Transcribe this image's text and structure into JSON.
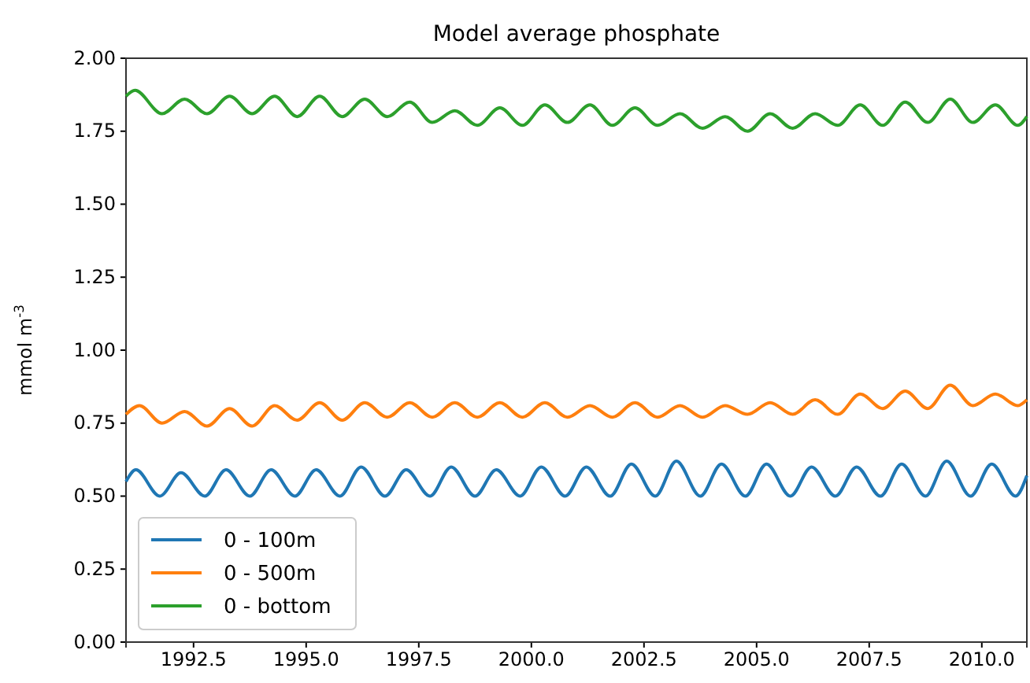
{
  "chart_data": {
    "type": "line",
    "title": "Model average phosphate",
    "ylabel": "mmol m$^{-3}$",
    "xlim": [
      1991,
      2011
    ],
    "ylim": [
      0,
      2
    ],
    "xticks": [
      {
        "value": 1992.5,
        "label": "1992.5"
      },
      {
        "value": 1995,
        "label": "1995.0"
      },
      {
        "value": 1997.5,
        "label": "1997.5"
      },
      {
        "value": 2000,
        "label": "2000.0"
      },
      {
        "value": 2002.5,
        "label": "2002.5"
      },
      {
        "value": 2005,
        "label": "2005.0"
      },
      {
        "value": 2007.5,
        "label": "2007.5"
      },
      {
        "value": 2010,
        "label": "2010.0"
      }
    ],
    "yticks": [
      {
        "value": 0,
        "label": "0.00"
      },
      {
        "value": 0.25,
        "label": "0.25"
      },
      {
        "value": 0.5,
        "label": "0.50"
      },
      {
        "value": 0.75,
        "label": "0.75"
      },
      {
        "value": 1,
        "label": "1.00"
      },
      {
        "value": 1.25,
        "label": "1.25"
      },
      {
        "value": 1.5,
        "label": "1.50"
      },
      {
        "value": 1.75,
        "label": "1.75"
      },
      {
        "value": 2,
        "label": "2.00"
      }
    ],
    "grid": false,
    "legend": "bottom left",
    "line_style": "solid",
    "marker": "none",
    "series": [
      {
        "name": "0 - 100m",
        "color": "#1f77b4",
        "x": [
          1991.0,
          1991.22,
          1991.75,
          1992.22,
          1992.75,
          1993.22,
          1993.75,
          1994.22,
          1994.75,
          1995.22,
          1995.75,
          1996.22,
          1996.75,
          1997.22,
          1997.75,
          1998.22,
          1998.75,
          1999.22,
          1999.75,
          2000.22,
          2000.75,
          2001.22,
          2001.75,
          2002.22,
          2002.75,
          2003.22,
          2003.75,
          2004.22,
          2004.75,
          2005.22,
          2005.75,
          2006.22,
          2006.75,
          2007.22,
          2007.75,
          2008.22,
          2008.75,
          2009.22,
          2009.75,
          2010.22,
          2010.75,
          2011.0
        ],
        "values": [
          0.55,
          0.59,
          0.5,
          0.58,
          0.5,
          0.59,
          0.5,
          0.59,
          0.5,
          0.59,
          0.5,
          0.6,
          0.5,
          0.59,
          0.5,
          0.6,
          0.5,
          0.59,
          0.5,
          0.6,
          0.5,
          0.6,
          0.5,
          0.61,
          0.5,
          0.62,
          0.5,
          0.61,
          0.5,
          0.61,
          0.5,
          0.6,
          0.5,
          0.6,
          0.5,
          0.61,
          0.5,
          0.62,
          0.5,
          0.61,
          0.5,
          0.57
        ]
      },
      {
        "name": "0 - 500m",
        "color": "#ff7f0e",
        "x": [
          1991.0,
          1991.3,
          1991.8,
          1992.3,
          1992.8,
          1993.3,
          1993.8,
          1994.3,
          1994.8,
          1995.3,
          1995.8,
          1996.3,
          1996.8,
          1997.3,
          1997.8,
          1998.3,
          1998.8,
          1999.3,
          1999.8,
          2000.3,
          2000.8,
          2001.3,
          2001.8,
          2002.3,
          2002.8,
          2003.3,
          2003.8,
          2004.3,
          2004.8,
          2005.3,
          2005.8,
          2006.3,
          2006.8,
          2007.3,
          2007.8,
          2008.3,
          2008.8,
          2009.3,
          2009.8,
          2010.3,
          2010.8,
          2011.0
        ],
        "values": [
          0.78,
          0.81,
          0.75,
          0.79,
          0.74,
          0.8,
          0.74,
          0.81,
          0.76,
          0.82,
          0.76,
          0.82,
          0.77,
          0.82,
          0.77,
          0.82,
          0.77,
          0.82,
          0.77,
          0.82,
          0.77,
          0.81,
          0.77,
          0.82,
          0.77,
          0.81,
          0.77,
          0.81,
          0.78,
          0.82,
          0.78,
          0.83,
          0.78,
          0.85,
          0.8,
          0.86,
          0.8,
          0.88,
          0.81,
          0.85,
          0.81,
          0.83
        ]
      },
      {
        "name": "0 - bottom",
        "color": "#2ca02c",
        "x": [
          1991.0,
          1991.2,
          1991.8,
          1992.3,
          1992.8,
          1993.3,
          1993.8,
          1994.3,
          1994.8,
          1995.3,
          1995.8,
          1996.3,
          1996.8,
          1997.3,
          1997.8,
          1998.3,
          1998.8,
          1999.3,
          1999.8,
          2000.3,
          2000.8,
          2001.3,
          2001.8,
          2002.3,
          2002.8,
          2003.3,
          2003.8,
          2004.3,
          2004.8,
          2005.3,
          2005.8,
          2006.3,
          2006.8,
          2007.3,
          2007.8,
          2008.3,
          2008.8,
          2009.3,
          2009.8,
          2010.3,
          2010.8,
          2011.0
        ],
        "values": [
          1.87,
          1.89,
          1.81,
          1.86,
          1.81,
          1.87,
          1.81,
          1.87,
          1.8,
          1.87,
          1.8,
          1.86,
          1.8,
          1.85,
          1.78,
          1.82,
          1.77,
          1.83,
          1.77,
          1.84,
          1.78,
          1.84,
          1.77,
          1.83,
          1.77,
          1.81,
          1.76,
          1.8,
          1.75,
          1.81,
          1.76,
          1.81,
          1.77,
          1.84,
          1.77,
          1.85,
          1.78,
          1.86,
          1.78,
          1.84,
          1.77,
          1.8
        ]
      }
    ]
  }
}
